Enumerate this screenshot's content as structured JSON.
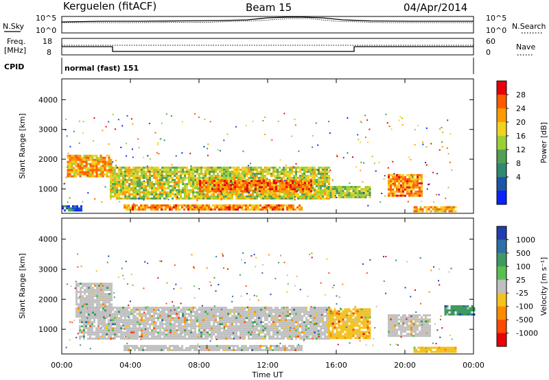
{
  "header": {
    "station": "Kerguelen (fitACF)",
    "beam": "Beam 15",
    "date": "04/Apr/2014"
  },
  "top_panels": {
    "nsky_label": "N.Sky",
    "nsearch_label": "N.Search",
    "nsky_ticks": [
      "10^5",
      "10^0"
    ],
    "nsearch_ticks": [
      "10^5",
      "10^0"
    ],
    "freq_label_line1": "Freq.",
    "freq_label_line2": "[MHz]",
    "freq_ticks": [
      "18",
      "8"
    ],
    "nave_label": "Nave",
    "nave_ticks": [
      "60",
      "0"
    ],
    "cpid_label": "CPID",
    "cpid_value": "normal (fast) 151"
  },
  "chart_data": [
    {
      "type": "heatmap",
      "name": "power",
      "ylabel": "Slant Range [km]",
      "yticks": [
        "4000",
        "3000",
        "2000",
        "1000"
      ],
      "xlabel": "Time UT",
      "xticks": [
        "00:00",
        "04:00",
        "08:00",
        "12:00",
        "16:00",
        "20:00",
        "00:00"
      ],
      "xlim_hours": [
        0,
        24
      ],
      "ylim_km": [
        180,
        4700
      ],
      "colorbar": {
        "label": "Power [dB]",
        "ticks": [
          "28",
          "24",
          "20",
          "16",
          "12",
          "8",
          "4"
        ],
        "colors": [
          "#e8000a",
          "#ff5a00",
          "#ff9a00",
          "#f3d21e",
          "#9bd035",
          "#52a055",
          "#2f8a70",
          "#1f55a8",
          "#0a22ff"
        ]
      },
      "regions": [
        {
          "t0": 2.8,
          "t1": 15.6,
          "r0": 700,
          "r1": 1750,
          "level": 0.55
        },
        {
          "t0": 8.0,
          "t1": 14.5,
          "r0": 900,
          "r1": 1300,
          "level": 0.8
        },
        {
          "t0": 0.3,
          "t1": 2.9,
          "r0": 1400,
          "r1": 2150,
          "level": 0.7
        },
        {
          "t0": 3.6,
          "t1": 14.0,
          "r0": 300,
          "r1": 480,
          "level": 0.75
        },
        {
          "t0": 15.5,
          "t1": 18.0,
          "r0": 700,
          "r1": 1100,
          "level": 0.5
        },
        {
          "t0": 19.0,
          "t1": 21.0,
          "r0": 800,
          "r1": 1500,
          "level": 0.75
        },
        {
          "t0": 20.5,
          "t1": 23.0,
          "r0": 280,
          "r1": 420,
          "level": 0.7
        },
        {
          "t0": 0.0,
          "t1": 1.2,
          "r0": 250,
          "r1": 450,
          "level": 0.2
        }
      ]
    },
    {
      "type": "heatmap",
      "name": "velocity",
      "ylabel": "Slant Range [km]",
      "yticks": [
        "4000",
        "3000",
        "2000",
        "1000"
      ],
      "xlabel": "Time UT",
      "xticks": [
        "00:00",
        "04:00",
        "08:00",
        "12:00",
        "16:00",
        "20:00",
        "00:00"
      ],
      "xlim_hours": [
        0,
        24
      ],
      "ylim_km": [
        180,
        4700
      ],
      "colorbar": {
        "label": "Velocity [m s⁻¹]",
        "ticks": [
          "1000",
          "500",
          "100",
          "25",
          "-25",
          "-100",
          "-500",
          "-1000"
        ],
        "colors": [
          "#1f3fb0",
          "#2e6fa8",
          "#3f9a60",
          "#59c050",
          "#c0c0c0",
          "#f3c21e",
          "#ff8a00",
          "#ff4a00",
          "#e8000a"
        ]
      },
      "regions": [
        {
          "t0": 1.0,
          "t1": 15.6,
          "r0": 700,
          "r1": 1750,
          "level": 0.5
        },
        {
          "t0": 0.8,
          "t1": 2.9,
          "r0": 1400,
          "r1": 2550,
          "level": 0.5
        },
        {
          "t0": 3.6,
          "t1": 14.0,
          "r0": 300,
          "r1": 480,
          "level": 0.5
        },
        {
          "t0": 15.5,
          "t1": 18.0,
          "r0": 700,
          "r1": 1700,
          "level": 0.35
        },
        {
          "t0": 19.0,
          "t1": 21.5,
          "r0": 800,
          "r1": 1500,
          "level": 0.5
        },
        {
          "t0": 22.3,
          "t1": 24.0,
          "r0": 1500,
          "r1": 1800,
          "level": 0.75
        },
        {
          "t0": 20.5,
          "t1": 23.0,
          "r0": 280,
          "r1": 420,
          "level": 0.35
        }
      ]
    }
  ]
}
